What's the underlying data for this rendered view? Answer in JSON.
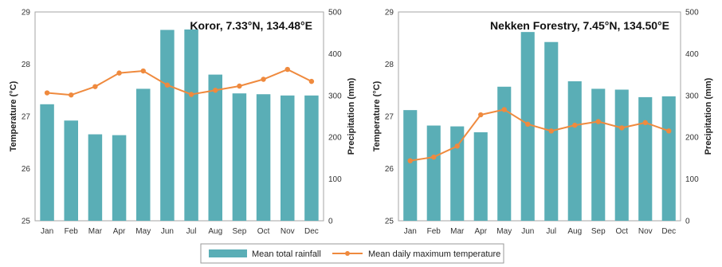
{
  "colors": {
    "bar": "#5aaeb6",
    "line": "#ef8a3e",
    "axis": "#a6a6a6",
    "frame": "#999999"
  },
  "legend": {
    "bar_label": "Mean total rainfall",
    "line_label": "Mean daily maximum temperature",
    "placement": "bottom-center"
  },
  "chart_data": [
    {
      "type": "bar+line",
      "title": "Koror, 7.33°N, 134.48°E",
      "ylabel_left": "Temperature (°C)",
      "ylabel_right": "Precipitation (mm)",
      "ylim_left": [
        25,
        29
      ],
      "ylim_right": [
        0,
        500
      ],
      "yticks_left": [
        "25",
        "26",
        "27",
        "28",
        "29"
      ],
      "yticks_right": [
        "0",
        "100",
        "200",
        "300",
        "400",
        "500"
      ],
      "categories": [
        "Jan",
        "Feb",
        "Mar",
        "Apr",
        "May",
        "Jun",
        "Jul",
        "Aug",
        "Sep",
        "Oct",
        "Nov",
        "Dec"
      ],
      "series": [
        {
          "name": "Mean total rainfall",
          "kind": "bar",
          "axis": "right",
          "values": [
            279,
            240,
            207,
            205,
            316,
            457,
            458,
            350,
            305,
            303,
            300,
            300
          ]
        },
        {
          "name": "Mean daily maximum temperature",
          "kind": "line",
          "axis": "left",
          "values": [
            27.45,
            27.41,
            27.57,
            27.83,
            27.87,
            27.6,
            27.42,
            27.5,
            27.58,
            27.71,
            27.9,
            27.67
          ]
        }
      ]
    },
    {
      "type": "bar+line",
      "title": "Nekken Forestry, 7.45°N, 134.50°E",
      "ylabel_left": "Temperature (°C)",
      "ylabel_right": "Precipitation (mm)",
      "ylim_left": [
        25,
        29
      ],
      "ylim_right": [
        0,
        500
      ],
      "yticks_left": [
        "25",
        "26",
        "27",
        "28",
        "29"
      ],
      "yticks_right": [
        "0",
        "100",
        "200",
        "300",
        "400",
        "500"
      ],
      "categories": [
        "Jan",
        "Feb",
        "Mar",
        "Apr",
        "May",
        "Jun",
        "Jul",
        "Aug",
        "Sep",
        "Oct",
        "Nov",
        "Dec"
      ],
      "series": [
        {
          "name": "Mean total rainfall",
          "kind": "bar",
          "axis": "right",
          "values": [
            265,
            228,
            226,
            212,
            321,
            452,
            428,
            334,
            316,
            314,
            296,
            298
          ]
        },
        {
          "name": "Mean daily maximum temperature",
          "kind": "line",
          "axis": "left",
          "values": [
            26.15,
            26.22,
            26.43,
            27.03,
            27.13,
            26.85,
            26.72,
            26.83,
            26.9,
            26.78,
            26.88,
            26.72
          ]
        }
      ]
    }
  ]
}
